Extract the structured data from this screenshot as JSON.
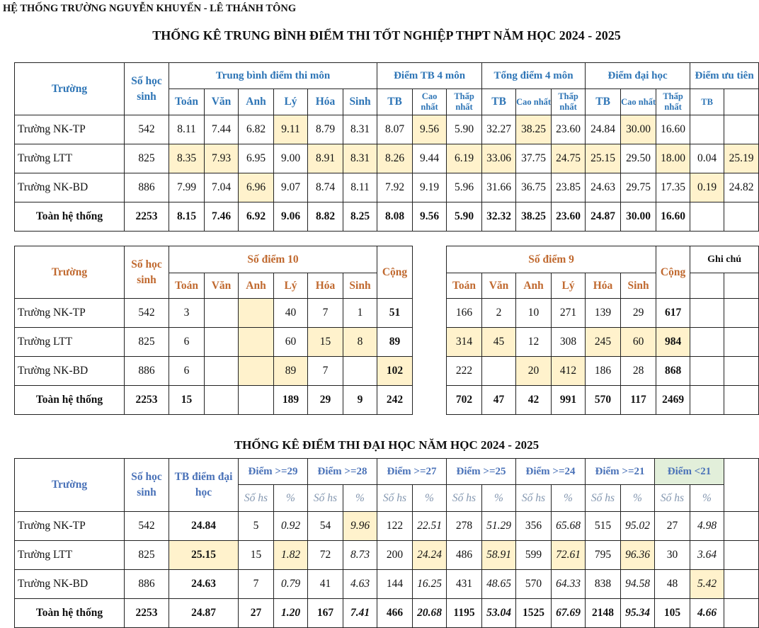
{
  "header": {
    "org": "HỆ THỐNG TRƯỜNG NGUYỄN KHUYẾN - LÊ THÁNH TÔNG",
    "title1": "THỐNG KÊ TRUNG BÌNH ĐIỂM THI TỐT NGHIỆP THPT NĂM HỌC 2024 - 2025",
    "title2": "THỐNG KÊ ĐIỂM THI ĐẠI HỌC NĂM HỌC 2024 - 2025"
  },
  "colors": {
    "header_blue": "#2e75b6",
    "header_orange": "#c0692f",
    "highlight": "#fff2cc",
    "green_header": "#e2efda"
  },
  "table1": {
    "col_school": "Trường",
    "col_students": "Số học sinh",
    "groups": [
      "Trung bình điểm thi môn",
      "Điểm TB 4 môn",
      "Tổng điểm 4 môn",
      "Điểm đại học",
      "Điểm ưu tiên"
    ],
    "subjects": [
      "Toán",
      "Văn",
      "Anh",
      "Lý",
      "Hóa",
      "Sinh"
    ],
    "stat_cols": [
      "TB",
      "Cao nhất",
      "Thấp nhất"
    ],
    "priority_cols": [
      "TB",
      ""
    ],
    "rows": [
      {
        "school": "Trường NK-TP",
        "students": "542",
        "values": [
          "8.11",
          "7.44",
          "6.82",
          "9.11",
          "8.79",
          "8.31",
          "8.07",
          "9.56",
          "5.90",
          "32.27",
          "38.25",
          "23.60",
          "24.84",
          "30.00",
          "16.60",
          "",
          ""
        ],
        "highlight": [
          3,
          7,
          10,
          13
        ]
      },
      {
        "school": "Trường LTT",
        "students": "825",
        "values": [
          "8.35",
          "7.93",
          "6.95",
          "9.00",
          "8.91",
          "8.31",
          "8.26",
          "9.44",
          "6.19",
          "33.06",
          "37.75",
          "24.75",
          "25.15",
          "29.50",
          "18.00",
          "0.04",
          "25.19"
        ],
        "highlight": [
          0,
          1,
          4,
          5,
          6,
          8,
          9,
          11,
          12,
          14,
          16
        ]
      },
      {
        "school": "Trường NK-BD",
        "students": "886",
        "values": [
          "7.99",
          "7.04",
          "6.96",
          "9.07",
          "8.74",
          "8.11",
          "7.92",
          "9.19",
          "5.96",
          "31.66",
          "36.75",
          "23.85",
          "24.63",
          "29.75",
          "17.35",
          "0.19",
          "24.82"
        ],
        "highlight": [
          2,
          15
        ]
      },
      {
        "school": "Toàn hệ thống",
        "students": "2253",
        "values": [
          "8.15",
          "7.46",
          "6.92",
          "9.06",
          "8.82",
          "8.25",
          "8.08",
          "9.56",
          "5.90",
          "32.32",
          "38.25",
          "23.60",
          "24.87",
          "30.00",
          "16.60",
          "",
          ""
        ],
        "highlight": [],
        "total": true
      }
    ]
  },
  "table2": {
    "col_school": "Trường",
    "col_students": "Số học sinh",
    "group10": "Số điểm 10",
    "group9": "Số điểm 9",
    "sum_label": "Cộng",
    "note_label": "Ghi chú",
    "subjects": [
      "Toán",
      "Văn",
      "Anh",
      "Lý",
      "Hóa",
      "Sinh"
    ],
    "rows": [
      {
        "school": "Trường NK-TP",
        "students": "542",
        "tens": [
          "3",
          "",
          "",
          "40",
          "7",
          "1"
        ],
        "tens_sum": "51",
        "nines": [
          "166",
          "2",
          "10",
          "271",
          "139",
          "29"
        ],
        "nines_sum": "617",
        "hl_tens": [
          2
        ],
        "hl_tens_sum": false,
        "hl_nines": [],
        "hl_nines_sum": false
      },
      {
        "school": "Trường LTT",
        "students": "825",
        "tens": [
          "6",
          "",
          "",
          "60",
          "15",
          "8"
        ],
        "tens_sum": "89",
        "nines": [
          "314",
          "45",
          "12",
          "308",
          "245",
          "60"
        ],
        "nines_sum": "984",
        "hl_tens": [
          2,
          4,
          5
        ],
        "hl_tens_sum": false,
        "hl_nines": [
          0,
          1,
          4,
          5
        ],
        "hl_nines_sum": true
      },
      {
        "school": "Trường NK-BD",
        "students": "886",
        "tens": [
          "6",
          "",
          "",
          "89",
          "7",
          ""
        ],
        "tens_sum": "102",
        "nines": [
          "222",
          "",
          "20",
          "412",
          "186",
          "28"
        ],
        "nines_sum": "868",
        "hl_tens": [
          2,
          3
        ],
        "hl_tens_sum": true,
        "hl_nines": [
          2,
          3
        ],
        "hl_nines_sum": false
      },
      {
        "school": "Toàn hệ thống",
        "students": "2253",
        "tens": [
          "15",
          "",
          "",
          "189",
          "29",
          "9"
        ],
        "tens_sum": "242",
        "nines": [
          "702",
          "47",
          "42",
          "991",
          "570",
          "117"
        ],
        "nines_sum": "2469",
        "hl_tens": [],
        "hl_tens_sum": false,
        "hl_nines": [],
        "hl_nines_sum": false,
        "total": true
      }
    ]
  },
  "table3": {
    "col_school": "Trường",
    "col_students": "Số học sinh",
    "col_avg": "TB điểm đại học",
    "groups": [
      "Điểm >=29",
      "Điểm >=28",
      "Điểm >=27",
      "Điểm >=25",
      "Điểm >=24",
      "Điểm >=21",
      "Điểm <21"
    ],
    "sub_count": "Số hs",
    "sub_pct": "%",
    "rows": [
      {
        "school": "Trường NK-TP",
        "students": "542",
        "values": [
          "24.84",
          "5",
          "0.92",
          "54",
          "9.96",
          "122",
          "22.51",
          "278",
          "51.29",
          "356",
          "65.68",
          "515",
          "95.02",
          "27",
          "4.98"
        ],
        "highlight": [
          4
        ]
      },
      {
        "school": "Trường LTT",
        "students": "825",
        "values": [
          "25.15",
          "15",
          "1.82",
          "72",
          "8.73",
          "200",
          "24.24",
          "486",
          "58.91",
          "599",
          "72.61",
          "795",
          "96.36",
          "30",
          "3.64"
        ],
        "highlight": [
          0,
          2,
          6,
          8,
          10,
          12
        ]
      },
      {
        "school": "Trường NK-BD",
        "students": "886",
        "values": [
          "24.63",
          "7",
          "0.79",
          "41",
          "4.63",
          "144",
          "16.25",
          "431",
          "48.65",
          "570",
          "64.33",
          "838",
          "94.58",
          "48",
          "5.42"
        ],
        "highlight": [
          14
        ]
      },
      {
        "school": "Toàn hệ thống",
        "students": "2253",
        "values": [
          "24.87",
          "27",
          "1.20",
          "167",
          "7.41",
          "466",
          "20.68",
          "1195",
          "53.04",
          "1525",
          "67.69",
          "2148",
          "95.34",
          "105",
          "4.66"
        ],
        "highlight": [],
        "total": true
      }
    ]
  }
}
